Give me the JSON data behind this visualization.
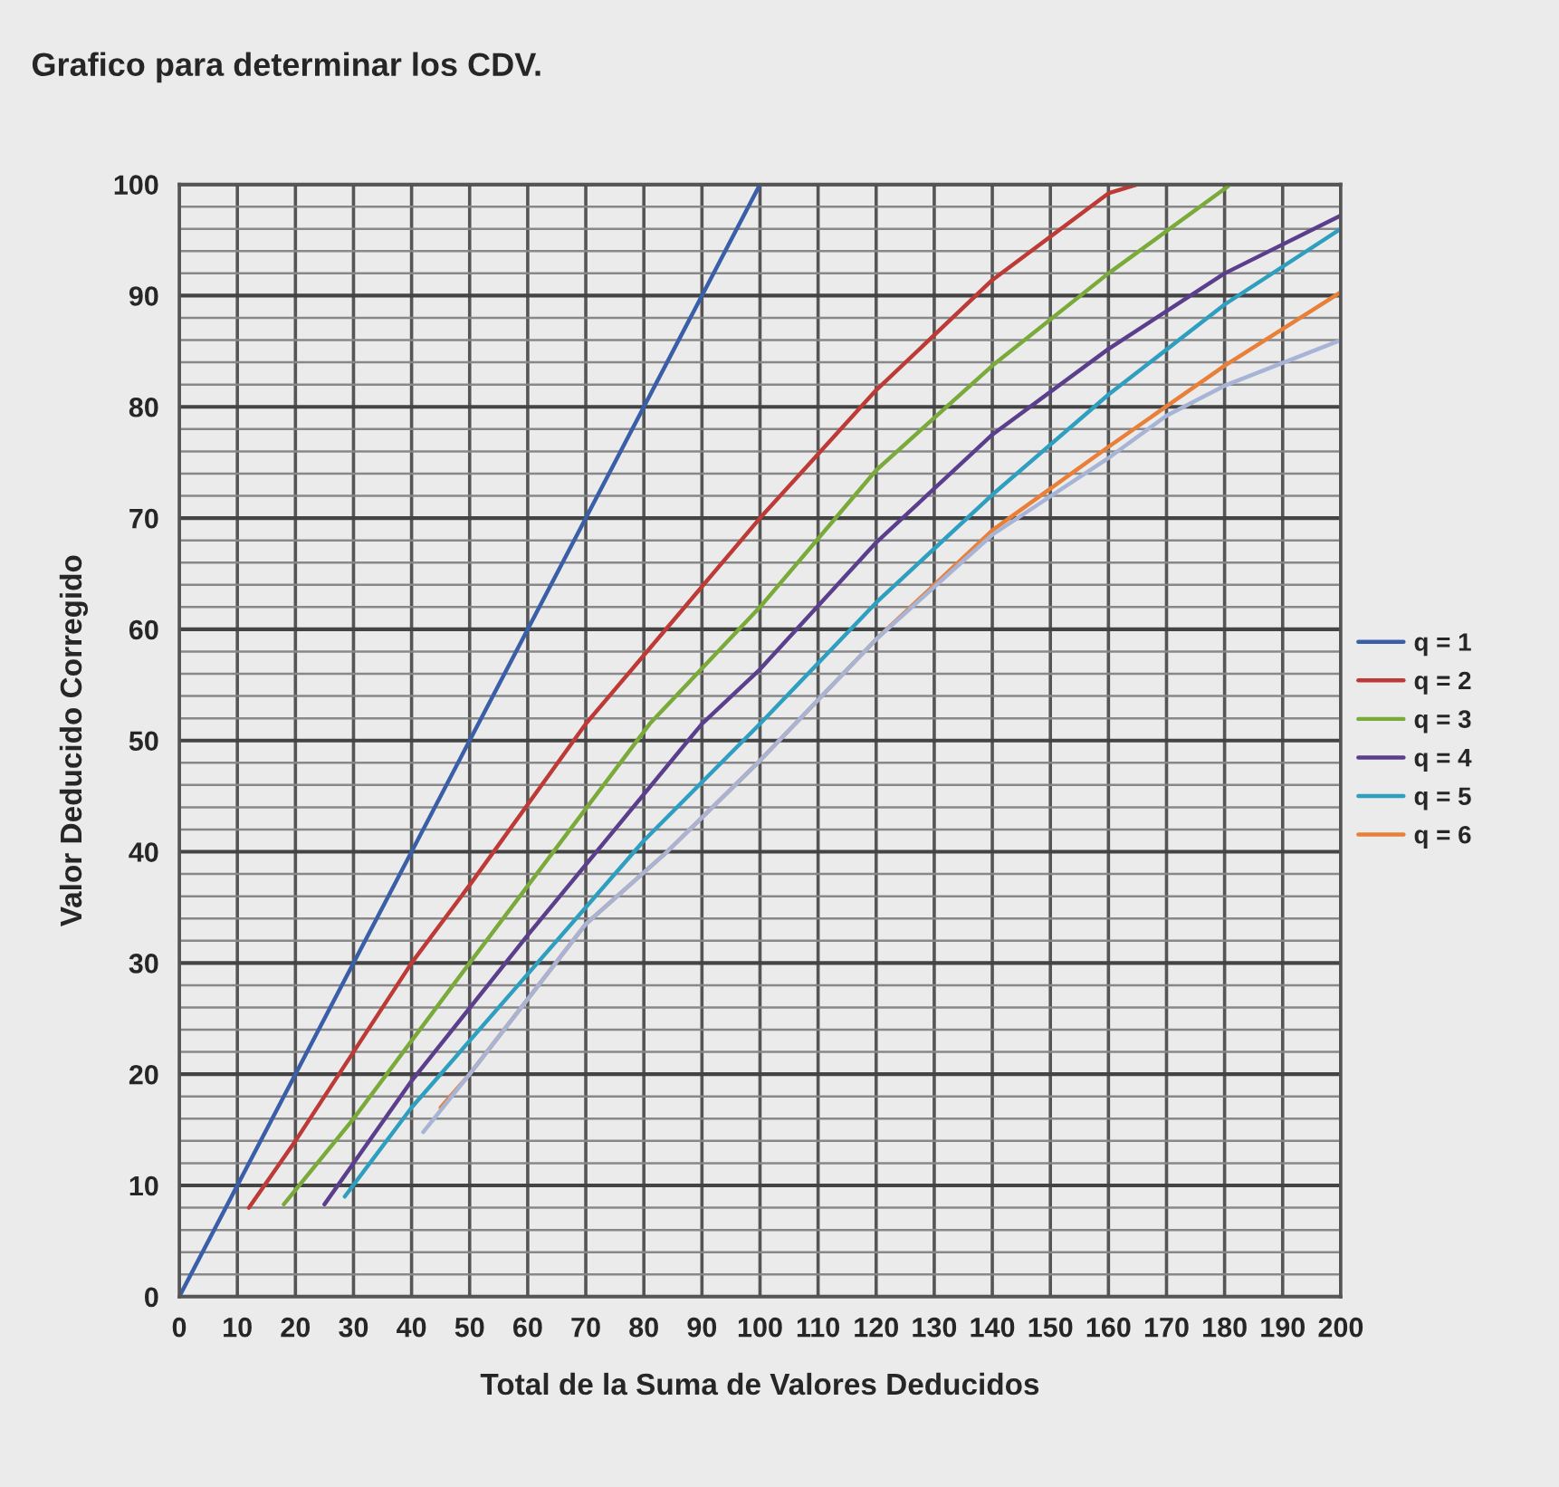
{
  "chart_data": {
    "type": "line",
    "title": "Grafico para determinar los CDV.",
    "xlabel": "Total de la Suma de Valores Deducidos",
    "ylabel": "Valor Deducido Corregido",
    "series": [
      {
        "name": "q = 1",
        "color": "#3b5ea8",
        "x": [
          0,
          100
        ],
        "values": [
          0,
          100
        ]
      },
      {
        "name": "q = 2",
        "color": "#be3a36",
        "x": [
          12,
          20,
          40,
          50,
          70,
          100,
          120,
          140,
          160,
          165
        ],
        "values": [
          8,
          14,
          30,
          37,
          51.5,
          70,
          81.5,
          91.4,
          99.2,
          100
        ]
      },
      {
        "name": "q = 3",
        "color": "#7aaa3a",
        "x": [
          18,
          30,
          50,
          81,
          100,
          120,
          140,
          160,
          180,
          181
        ],
        "values": [
          8.3,
          16,
          30,
          51.5,
          62,
          74.3,
          83.7,
          92,
          99.6,
          100
        ]
      },
      {
        "name": "q = 4",
        "color": "#5b3f8c",
        "x": [
          25,
          40,
          60,
          90,
          100,
          120,
          140,
          160,
          180,
          200
        ],
        "values": [
          8.3,
          19.4,
          32.5,
          51.5,
          56.4,
          67.8,
          77.5,
          85.2,
          92,
          97.2
        ]
      },
      {
        "name": "q = 5",
        "color": "#2f9fc0",
        "x": [
          28.5,
          40,
          60,
          80,
          100,
          120,
          140,
          160,
          180,
          200
        ],
        "values": [
          9,
          17,
          29,
          41,
          51.5,
          62.4,
          72.1,
          81.1,
          89.2,
          96
        ]
      },
      {
        "name": "q = 6",
        "color": "#e8803a",
        "x": [
          45,
          50,
          70,
          84,
          100,
          120,
          140,
          160,
          180,
          200
        ],
        "values": [
          17,
          20,
          33.5,
          40,
          48.2,
          59.1,
          68.9,
          76.4,
          83.7,
          90.3
        ]
      },
      {
        "color": "#a7b4d6",
        "x": [
          42,
          50,
          70,
          84,
          100,
          120,
          140,
          160,
          170,
          180,
          200
        ],
        "values": [
          14.8,
          20,
          33.5,
          40,
          48.2,
          59.1,
          68.5,
          75.4,
          79.2,
          81.9,
          86
        ]
      }
    ],
    "xlim": [
      0,
      200
    ],
    "xticks": [
      0,
      10,
      20,
      30,
      40,
      50,
      60,
      70,
      80,
      90,
      100,
      110,
      120,
      130,
      140,
      150,
      160,
      170,
      180,
      190,
      200
    ],
    "ylim": [
      0,
      100
    ],
    "yticks": [
      0,
      {
        "value": 2,
        "label": null
      },
      {
        "value": 4,
        "label": null
      },
      {
        "value": 6,
        "label": null
      },
      {
        "value": 8,
        "label": null
      },
      10,
      {
        "value": 12,
        "label": null
      },
      {
        "value": 14,
        "label": null
      },
      {
        "value": 16,
        "label": null
      },
      {
        "value": 18,
        "label": null
      },
      20,
      {
        "value": 22,
        "label": null
      },
      {
        "value": 24,
        "label": null
      },
      {
        "value": 26,
        "label": null
      },
      {
        "value": 28,
        "label": null
      },
      30,
      {
        "value": 32,
        "label": null
      },
      {
        "value": 34,
        "label": null
      },
      {
        "value": 36,
        "label": null
      },
      {
        "value": 38,
        "label": null
      },
      40,
      {
        "value": 42,
        "label": null
      },
      {
        "value": 44,
        "label": null
      },
      {
        "value": 46,
        "label": null
      },
      {
        "value": 48,
        "label": null
      },
      50,
      {
        "value": 52,
        "label": null
      },
      {
        "value": 54,
        "label": null
      },
      {
        "value": 56,
        "label": null
      },
      {
        "value": 58,
        "label": null
      },
      60,
      {
        "value": 62,
        "label": null
      },
      {
        "value": 64,
        "label": null
      },
      {
        "value": 66,
        "label": null
      },
      {
        "value": 68,
        "label": null
      },
      70,
      {
        "value": 72,
        "label": null
      },
      {
        "value": 74,
        "label": null
      },
      {
        "value": 76,
        "label": null
      },
      {
        "value": 78,
        "label": null
      },
      80,
      {
        "value": 82,
        "label": null
      },
      {
        "value": 84,
        "label": null
      },
      {
        "value": 86,
        "label": null
      },
      {
        "value": 88,
        "label": null
      },
      90,
      {
        "value": 92,
        "label": null
      },
      {
        "value": 94,
        "label": null
      },
      {
        "value": 96,
        "label": null
      },
      {
        "value": 98,
        "label": null
      },
      100
    ],
    "grid": true,
    "legend": "right",
    "marker": "none",
    "line_style": "solid"
  }
}
